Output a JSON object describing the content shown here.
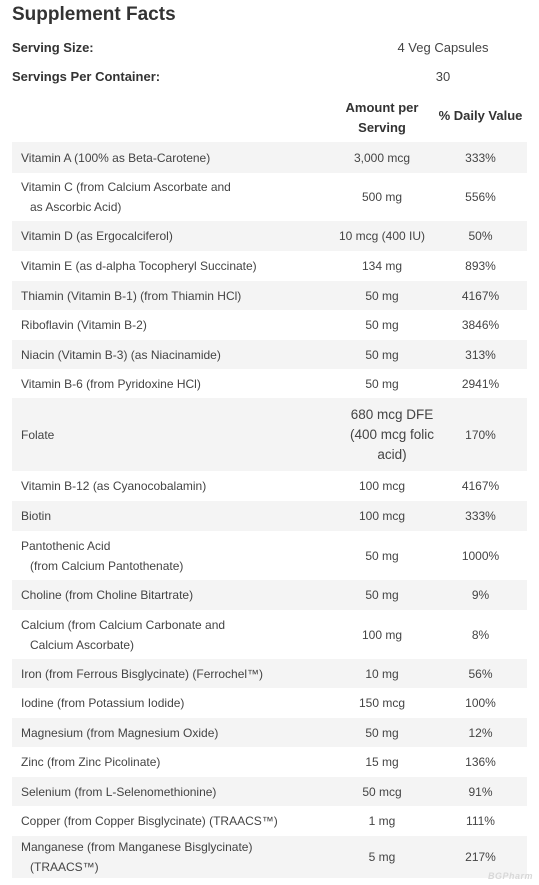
{
  "title": "Supplement Facts",
  "serving_size": {
    "label": "Serving Size:",
    "value": "4 Veg Capsules"
  },
  "servings_per_container": {
    "label": "Servings Per Container:",
    "value": "30"
  },
  "headers": {
    "amount_line1": "Amount per",
    "amount_line2": "Serving",
    "dv": "% Daily Value"
  },
  "rows": [
    {
      "l1": "Vitamin A (100% as Beta-Carotene)",
      "l2": "",
      "amt": "3,000 mcg",
      "dv": "333%"
    },
    {
      "l1": "Vitamin C (from Calcium Ascorbate and",
      "l2": "as Ascorbic Acid)",
      "amt": "500 mg",
      "dv": "556%"
    },
    {
      "l1": "Vitamin D (as Ergocalciferol)",
      "l2": "",
      "amt": "10 mcg (400 IU)",
      "dv": "50%"
    },
    {
      "l1": "Vitamin E (as d-alpha Tocopheryl Succinate)",
      "l2": "",
      "amt": "134 mg",
      "dv": "893%"
    },
    {
      "l1": "Thiamin (Vitamin B-1) (from Thiamin HCl)",
      "l2": "",
      "amt": "50 mg",
      "dv": "4167%"
    },
    {
      "l1": "Riboflavin (Vitamin B-2)",
      "l2": "",
      "amt": "50 mg",
      "dv": "3846%"
    },
    {
      "l1": "Niacin (Vitamin B-3) (as Niacinamide)",
      "l2": "",
      "amt": "50 mg",
      "dv": "313%"
    },
    {
      "l1": "Vitamin B-6 (from Pyridoxine HCl)",
      "l2": "",
      "amt": "50 mg",
      "dv": "2941%"
    },
    {
      "l1": "Folate",
      "l2": "",
      "amt": "680 mcg DFE (400 mcg folic acid)",
      "dv": "170%"
    },
    {
      "l1": "Vitamin B-12 (as Cyanocobalamin)",
      "l2": "",
      "amt": "100 mcg",
      "dv": "4167%"
    },
    {
      "l1": "Biotin",
      "l2": "",
      "amt": "100 mcg",
      "dv": "333%"
    },
    {
      "l1": "Pantothenic Acid",
      "l2": "(from Calcium Pantothenate)",
      "amt": "50 mg",
      "dv": "1000%"
    },
    {
      "l1": "Choline (from Choline Bitartrate)",
      "l2": "",
      "amt": "50 mg",
      "dv": "9%"
    },
    {
      "l1": "Calcium (from Calcium Carbonate and",
      "l2": "Calcium Ascorbate)",
      "amt": "100 mg",
      "dv": "8%"
    },
    {
      "l1": "Iron (from Ferrous Bisglycinate) (Ferrochel™)",
      "l2": "",
      "amt": "10 mg",
      "dv": "56%"
    },
    {
      "l1": "Iodine (from Potassium Iodide)",
      "l2": "",
      "amt": "150 mcg",
      "dv": "100%"
    },
    {
      "l1": "Magnesium (from Magnesium Oxide)",
      "l2": "",
      "amt": "50 mg",
      "dv": "12%"
    },
    {
      "l1": "Zinc (from Zinc Picolinate)",
      "l2": "",
      "amt": "15 mg",
      "dv": "136%"
    },
    {
      "l1": "Selenium (from L-Selenomethionine)",
      "l2": "",
      "amt": "50 mcg",
      "dv": "91%"
    },
    {
      "l1": "Copper (from Copper Bisglycinate) (TRAACS™)",
      "l2": "",
      "amt": "1 mg",
      "dv": "111%"
    },
    {
      "l1": "Manganese (from Manganese Bisglycinate)",
      "l2": "(TRAACS™)",
      "amt": "5 mg",
      "dv": "217%"
    }
  ],
  "watermark": "BGPharm"
}
